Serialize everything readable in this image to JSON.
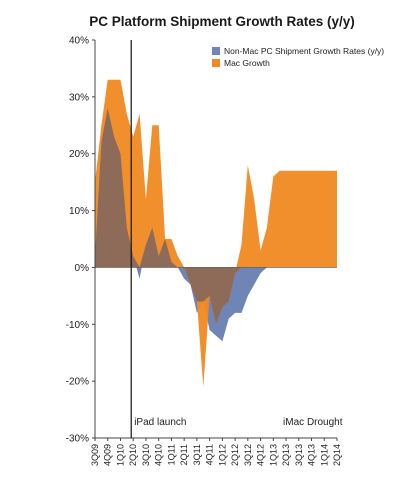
{
  "chart_data": {
    "type": "area",
    "title": "PC Platform Shipment Growth Rates (y/y)",
    "xlabel": "",
    "ylabel": "",
    "ylim": [
      -30,
      40
    ],
    "yticks": [
      -30,
      -20,
      -10,
      0,
      10,
      20,
      30,
      40
    ],
    "ytick_labels": [
      "-30%",
      "-20%",
      "-10%",
      "0%",
      "10%",
      "20%",
      "30%",
      "40%"
    ],
    "categories": [
      "3Q09",
      "4Q09",
      "1Q10",
      "2Q10",
      "3Q10",
      "4Q10",
      "1Q11",
      "2Q11",
      "3Q11",
      "4Q11",
      "1Q12",
      "2Q12",
      "3Q12",
      "4Q12",
      "1Q13",
      "2Q13",
      "3Q13",
      "4Q13",
      "1Q14",
      "2Q14"
    ],
    "x": [
      0,
      0.5,
      1,
      1.5,
      2,
      2.5,
      3,
      3.5,
      4,
      4.5,
      5,
      5.5,
      6,
      6.5,
      7,
      7.5,
      8,
      8.5,
      9,
      9.5,
      10,
      10.5,
      11,
      11.5,
      12,
      12.5,
      13,
      13.5,
      14,
      14.5,
      15,
      15.5,
      16,
      16.5,
      17,
      17.5,
      18,
      18.5,
      19
    ],
    "series": [
      {
        "name": "Non-Mac PC Shipment Growth Rates (y/y)",
        "color": "#6f85b5",
        "values": [
          2,
          22,
          28,
          23,
          20,
          7,
          2,
          -2,
          4,
          7,
          2,
          5,
          1,
          0,
          -2,
          -3,
          -8,
          -6,
          -11,
          -12,
          -13,
          -9,
          -8,
          -8,
          -5,
          -3,
          -1,
          0,
          0,
          0,
          0,
          0,
          0,
          0,
          0,
          0,
          0,
          0,
          0
        ]
      },
      {
        "name": "Mac Growth",
        "color": "#f18a24",
        "values": [
          15,
          25,
          33,
          33,
          33,
          27,
          23,
          27,
          12,
          25,
          25,
          5,
          5,
          2,
          0,
          -3,
          -6,
          -21,
          -5,
          -10,
          -7,
          -6,
          -1,
          4,
          18,
          12,
          3,
          7,
          16,
          17,
          17,
          17,
          17,
          17,
          17,
          17,
          17,
          17,
          17
        ]
      }
    ],
    "annotations": [
      {
        "text": "iPad launch",
        "x_category": "2Q10"
      },
      {
        "text": "iMac Drought",
        "x_category": "3Q13"
      }
    ],
    "legend_position": "top-right",
    "grid": false
  }
}
